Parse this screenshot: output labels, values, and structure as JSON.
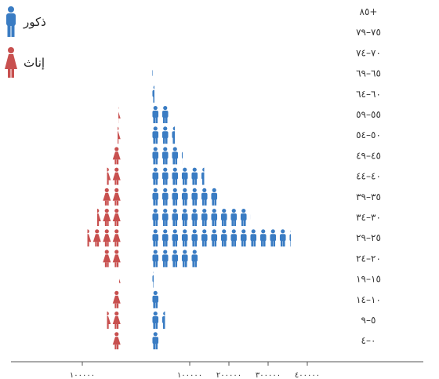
{
  "legend": {
    "male_label": "ذكور",
    "female_label": "إناث",
    "male_icon": "male-person-icon",
    "female_icon": "female-person-icon"
  },
  "colors": {
    "male": "#3a7cc3",
    "female": "#c8504f",
    "axis": "#555555"
  },
  "chart_data": {
    "type": "bar",
    "orientation": "horizontal",
    "style": "pictogram",
    "units_per_icon": 25000,
    "categories": [
      "٨٥+",
      "٧٩–٧٥",
      "٧٤–٧٠",
      "٦٩–٦٥",
      "٦٤–٦٠",
      "٥٩–٥٥",
      "٥٤–٥٠",
      "٤٩–٤٥",
      "٤٤–٤٠",
      "٣٩–٣٥",
      "٣٤–٣٠",
      "٢٩–٢٥",
      "٢٤–٢٠",
      "١٩–١٥",
      "١٤–١٠",
      "٩–٥",
      "٤–٠"
    ],
    "series": [
      {
        "name": "ذكور",
        "values": [
          3000,
          3000,
          3000,
          6000,
          10000,
          50000,
          62000,
          82000,
          137000,
          175000,
          255000,
          358000,
          125000,
          8000,
          25000,
          37000,
          25000
        ]
      },
      {
        "name": "إناث",
        "values": [
          1000,
          1000,
          1000,
          1000,
          1000,
          8000,
          10000,
          25000,
          37000,
          50000,
          62000,
          87000,
          50000,
          6000,
          25000,
          37000,
          25000
        ]
      }
    ],
    "xticks_male": [
      {
        "value": 100000,
        "label": "١٠٠٠٠٠"
      },
      {
        "value": 200000,
        "label": "٢٠٠٠٠٠"
      },
      {
        "value": 300000,
        "label": "٣٠٠٠٠٠"
      },
      {
        "value": 400000,
        "label": "٤٠٠٠٠٠"
      }
    ],
    "xticks_female": [
      {
        "value": 100000,
        "label": "١٠٠٠٠٠"
      }
    ],
    "legend_position": "top-left",
    "grid": false
  }
}
